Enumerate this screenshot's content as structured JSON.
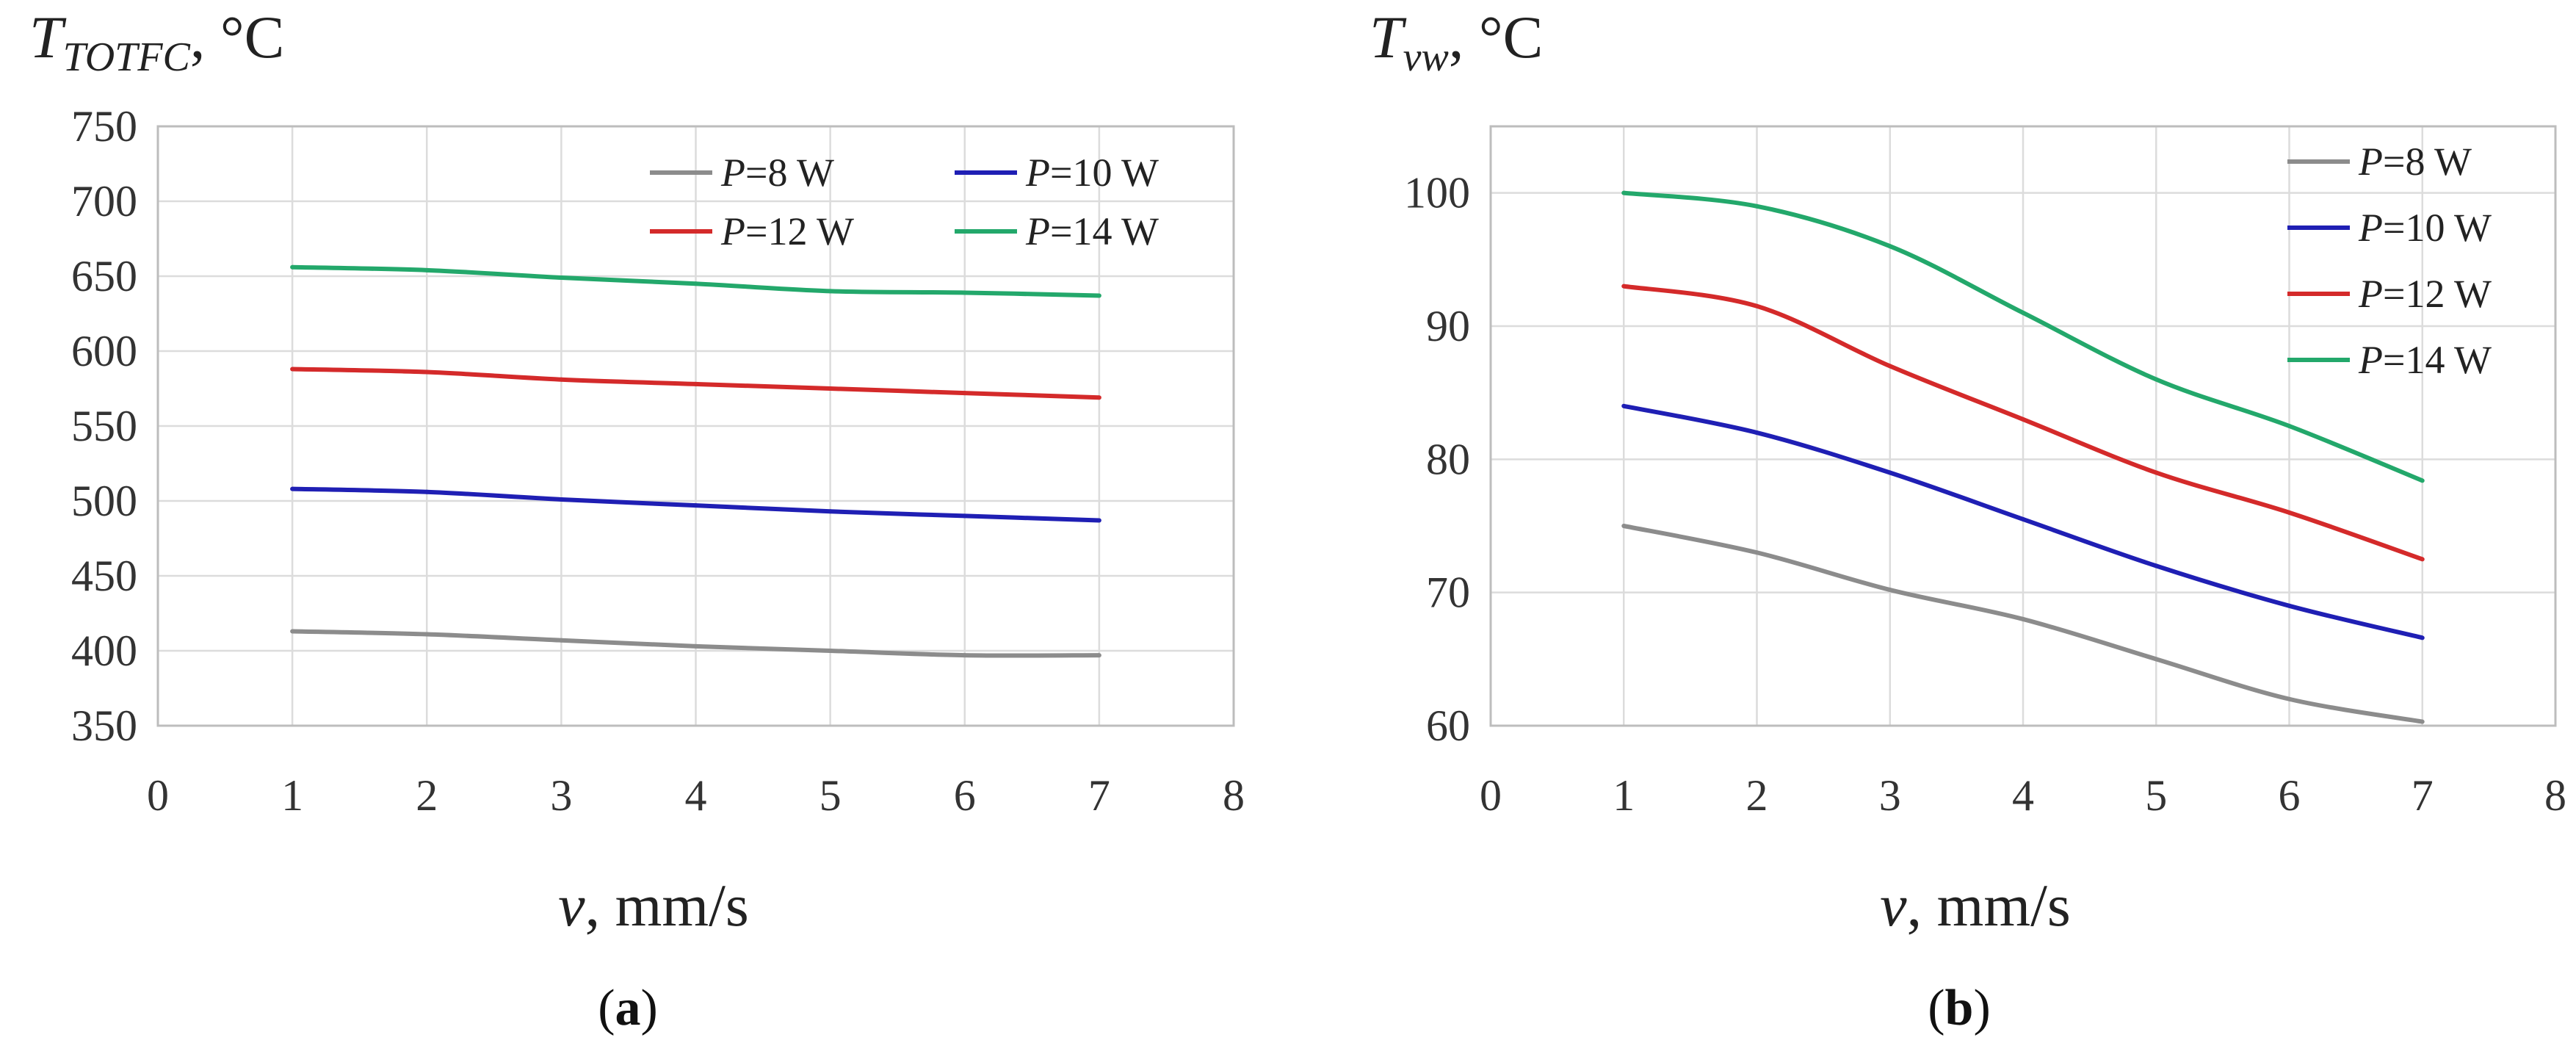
{
  "chart_data": [
    {
      "type": "line",
      "title": "",
      "ylabel_main": "T",
      "ylabel_sub": "TOTFC",
      "ylabel_unit": ", °C",
      "xlabel_var": "v",
      "xlabel_unit": ", mm/s",
      "panel_label_open": "(",
      "panel_label": "a",
      "panel_label_close": ")",
      "xlim": [
        0,
        8
      ],
      "ylim": [
        350,
        750
      ],
      "xticks": [
        0,
        1,
        2,
        3,
        4,
        5,
        6,
        7,
        8
      ],
      "yticks": [
        350,
        400,
        450,
        500,
        550,
        600,
        650,
        700,
        750
      ],
      "grid": true,
      "legend_position": "top-right",
      "x": [
        1,
        2,
        3,
        4,
        5,
        6,
        7
      ],
      "series": [
        {
          "name": "P=8 W",
          "name_var": "P",
          "name_rest": "=8 W",
          "color": "#8c8c8c",
          "values": [
            413,
            411,
            407,
            403,
            400,
            397,
            397
          ]
        },
        {
          "name": "P=10 W",
          "name_var": "P",
          "name_rest": "=10 W",
          "color": "#1f1fb4",
          "values": [
            508,
            506,
            501,
            497,
            493,
            490,
            487
          ]
        },
        {
          "name": "P=12 W",
          "name_var": "P",
          "name_rest": "=12 W",
          "color": "#d42a2a",
          "values": [
            588,
            586,
            581,
            578,
            575,
            572,
            569
          ]
        },
        {
          "name": "P=14 W",
          "name_var": "P",
          "name_rest": "=14 W",
          "color": "#23a86b",
          "values": [
            656,
            654,
            649,
            645,
            640,
            639,
            637
          ]
        }
      ]
    },
    {
      "type": "line",
      "title": "",
      "ylabel_main": "T",
      "ylabel_sub": "vw",
      "ylabel_unit": ", °C",
      "xlabel_var": "v",
      "xlabel_unit": ", mm/s",
      "panel_label_open": "(",
      "panel_label": "b",
      "panel_label_close": ")",
      "xlim": [
        0,
        8
      ],
      "ylim": [
        60,
        105
      ],
      "xticks": [
        0,
        1,
        2,
        3,
        4,
        5,
        6,
        7,
        8
      ],
      "yticks": [
        60,
        70,
        80,
        90,
        100
      ],
      "grid": true,
      "legend_position": "top-right",
      "x": [
        1,
        2,
        3,
        4,
        5,
        6,
        7
      ],
      "series": [
        {
          "name": "P=8 W",
          "name_var": "P",
          "name_rest": "=8 W",
          "color": "#8c8c8c",
          "values": [
            75,
            73,
            70.2,
            68,
            65,
            62,
            60.3
          ]
        },
        {
          "name": "P=10 W",
          "name_var": "P",
          "name_rest": "=10 W",
          "color": "#1f1fb4",
          "values": [
            84,
            82,
            79,
            75.5,
            72,
            69,
            66.6
          ]
        },
        {
          "name": "P=12 W",
          "name_var": "P",
          "name_rest": "=12 W",
          "color": "#d42a2a",
          "values": [
            93,
            91.5,
            87,
            83,
            79,
            76,
            72.5
          ]
        },
        {
          "name": "P=14 W",
          "name_var": "P",
          "name_rest": "=14 W",
          "color": "#23a86b",
          "values": [
            100,
            99,
            96,
            91,
            86,
            82.5,
            78.4
          ]
        }
      ]
    }
  ]
}
